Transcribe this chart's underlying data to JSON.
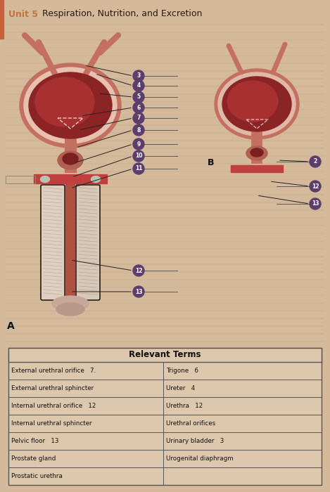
{
  "title_unit": "Unit 5",
  "title_text": "  Respiration, Nutrition, and Excretion",
  "bg_color": "#d4b99a",
  "header_color": "#c8703a",
  "left_bar_color": "#c8603a",
  "table_title": "Relevant Terms",
  "table_left_col": [
    "External urethral orifice   7.",
    "External urethral sphincter",
    "Internal urethral orifice   12",
    "Internal urethral sphincter",
    "Pelvic floor   13",
    "Prostate gland",
    "Prostatic urethra"
  ],
  "table_right_col": [
    "Trigone   6",
    "Ureter   4",
    "Urethra   12",
    "Urethral orifices",
    "Urinary bladder   3",
    "Urogenital diaphragm",
    ""
  ],
  "label_A": "A",
  "label_B": "B",
  "label_circle_color": "#5c3d6b",
  "label_circle_text_color": "#ffffff"
}
